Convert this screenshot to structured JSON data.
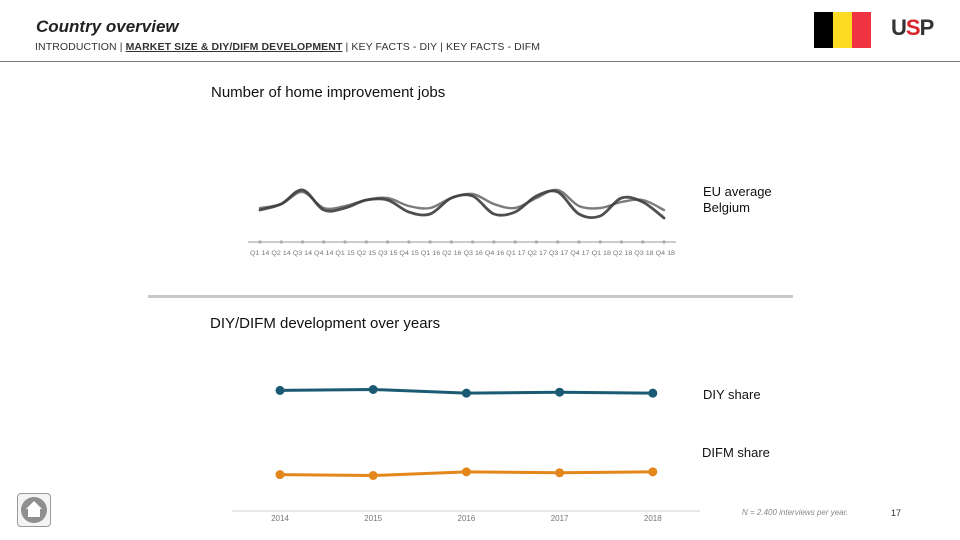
{
  "header": {
    "title": "Country overview",
    "nav": {
      "item_intro": "INTRODUCTION",
      "sep": " | ",
      "item_market": "MARKET SIZE & DIY/DIFM DEVELOPMENT",
      "item_diy": "KEY FACTS - DIY",
      "item_difm": "KEY FACTS - DIFM"
    },
    "logo_text_pre": "U",
    "logo_text_mid": "S",
    "logo_text_post": "P",
    "flag_colors": [
      "#000000",
      "#FDDA24",
      "#EF3340"
    ]
  },
  "colors": {
    "diy": "#1b5a73",
    "difm": "#e3861c",
    "eu_line": "#6e6e6e",
    "be_line": "#3c3c3c",
    "axis": "#bbbbbb"
  },
  "chart_data": [
    {
      "type": "line",
      "title": "Number of home improvement jobs",
      "categories": [
        "Q1 14",
        "Q2 14",
        "Q3 14",
        "Q4 14",
        "Q1 15",
        "Q2 15",
        "Q3 15",
        "Q4 15",
        "Q1 16",
        "Q2 16",
        "Q3 16",
        "Q4 16",
        "Q1 17",
        "Q2 17",
        "Q3 17",
        "Q4 17",
        "Q1 18",
        "Q2 18",
        "Q3 18",
        "Q4 18"
      ],
      "tick_text": "Q1 14 Q2 14 Q3 14 Q4 14 Q1 15 Q2 15 Q3 15 Q4 15 Q1 16 Q2 16 Q3 16 Q4 16 Q1 17 Q2 17 Q3 17 Q4 17 Q1 18 Q2 18 Q3 18 Q4 18",
      "ylim": [
        0,
        100
      ],
      "series": [
        {
          "name": "EU average",
          "values": [
            47,
            49,
            55,
            47,
            48,
            51,
            52,
            48,
            47,
            52,
            54,
            49,
            47,
            52,
            56,
            48,
            47,
            50,
            51,
            46
          ]
        },
        {
          "name": "Belgium",
          "values": [
            46,
            49,
            56,
            46,
            47,
            51,
            51,
            45,
            44,
            52,
            53,
            44,
            45,
            53,
            55,
            44,
            43,
            52,
            50,
            42
          ]
        }
      ]
    },
    {
      "type": "line",
      "title": "DIY/DIFM development over years",
      "categories": [
        "2014",
        "2015",
        "2016",
        "2017",
        "2018"
      ],
      "ylim": [
        0,
        100
      ],
      "series": [
        {
          "name": "DIY share",
          "values": [
            73,
            73.5,
            71.5,
            72,
            71.5
          ]
        },
        {
          "name": "DIFM share",
          "values": [
            27,
            26.5,
            28.5,
            28,
            28.5
          ]
        }
      ]
    }
  ],
  "footer": {
    "note": "N = 2.400 interviews per year.",
    "page": "17"
  }
}
